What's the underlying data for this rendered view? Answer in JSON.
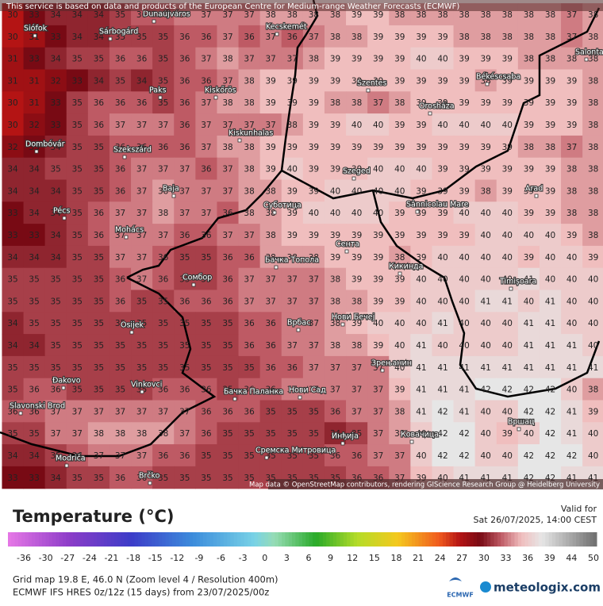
{
  "banner": "This service is based on data and products of the European Centre for Medium-range Weather Forecasts (ECMWF)",
  "map": {
    "grid": [
      [
        30,
        33,
        34,
        34,
        34,
        35,
        36,
        36,
        37,
        37,
        37,
        37,
        38,
        38,
        38,
        38,
        39,
        39,
        38,
        38,
        38,
        38,
        38,
        38,
        38,
        38,
        37,
        38
      ],
      [
        30,
        31,
        33,
        34,
        34,
        35,
        35,
        35,
        36,
        36,
        37,
        36,
        37,
        36,
        37,
        38,
        38,
        39,
        39,
        39,
        39,
        38,
        38,
        38,
        38,
        38,
        37,
        38
      ],
      [
        31,
        33,
        34,
        35,
        35,
        36,
        36,
        35,
        36,
        37,
        38,
        37,
        37,
        37,
        38,
        39,
        39,
        39,
        39,
        40,
        40,
        39,
        39,
        39,
        38,
        38,
        38,
        38
      ],
      [
        31,
        31,
        32,
        33,
        34,
        35,
        34,
        35,
        36,
        36,
        37,
        38,
        39,
        39,
        39,
        39,
        39,
        39,
        39,
        39,
        39,
        39,
        38,
        39,
        39,
        39,
        39,
        38
      ],
      [
        30,
        31,
        33,
        35,
        36,
        36,
        36,
        35,
        36,
        37,
        38,
        38,
        39,
        39,
        39,
        38,
        38,
        37,
        38,
        39,
        39,
        39,
        39,
        39,
        39,
        39,
        39,
        38
      ],
      [
        30,
        32,
        33,
        35,
        36,
        37,
        37,
        37,
        36,
        37,
        37,
        37,
        37,
        38,
        39,
        39,
        40,
        40,
        39,
        39,
        40,
        40,
        40,
        40,
        39,
        39,
        39,
        38
      ],
      [
        32,
        33,
        34,
        35,
        35,
        36,
        36,
        36,
        36,
        37,
        38,
        38,
        39,
        39,
        39,
        39,
        39,
        39,
        39,
        39,
        39,
        39,
        39,
        39,
        38,
        38,
        37,
        38
      ],
      [
        34,
        34,
        35,
        35,
        35,
        36,
        37,
        37,
        37,
        36,
        37,
        38,
        39,
        40,
        39,
        39,
        39,
        40,
        40,
        40,
        39,
        39,
        39,
        39,
        39,
        39,
        38,
        38
      ],
      [
        34,
        34,
        34,
        35,
        35,
        36,
        37,
        38,
        37,
        37,
        37,
        38,
        38,
        39,
        39,
        40,
        40,
        40,
        40,
        39,
        39,
        39,
        38,
        39,
        39,
        39,
        38,
        38
      ],
      [
        33,
        34,
        34,
        35,
        36,
        37,
        37,
        38,
        37,
        37,
        36,
        38,
        38,
        39,
        40,
        40,
        40,
        40,
        39,
        39,
        39,
        40,
        40,
        40,
        39,
        39,
        38,
        38
      ],
      [
        33,
        33,
        34,
        35,
        36,
        37,
        37,
        37,
        36,
        36,
        37,
        37,
        38,
        39,
        39,
        39,
        39,
        39,
        39,
        39,
        39,
        39,
        40,
        40,
        40,
        40,
        39,
        38
      ],
      [
        34,
        34,
        34,
        35,
        35,
        37,
        37,
        36,
        35,
        35,
        36,
        36,
        38,
        38,
        38,
        39,
        39,
        39,
        38,
        39,
        40,
        40,
        40,
        40,
        39,
        40,
        40,
        39
      ],
      [
        35,
        35,
        35,
        35,
        35,
        36,
        37,
        36,
        35,
        35,
        36,
        37,
        37,
        37,
        37,
        38,
        39,
        39,
        39,
        40,
        40,
        40,
        40,
        40,
        41,
        40,
        40,
        40
      ],
      [
        35,
        35,
        35,
        35,
        35,
        36,
        35,
        35,
        36,
        36,
        36,
        37,
        37,
        37,
        37,
        38,
        38,
        39,
        39,
        40,
        40,
        40,
        41,
        41,
        40,
        41,
        40,
        40
      ],
      [
        34,
        35,
        35,
        35,
        35,
        35,
        35,
        35,
        35,
        35,
        35,
        36,
        36,
        37,
        37,
        38,
        39,
        40,
        40,
        40,
        41,
        40,
        40,
        40,
        41,
        41,
        40,
        40
      ],
      [
        34,
        34,
        35,
        35,
        35,
        35,
        35,
        35,
        35,
        35,
        35,
        36,
        36,
        37,
        37,
        38,
        38,
        39,
        40,
        41,
        40,
        40,
        40,
        40,
        41,
        41,
        41,
        40
      ],
      [
        35,
        35,
        35,
        35,
        35,
        35,
        35,
        35,
        35,
        35,
        35,
        35,
        36,
        36,
        37,
        37,
        37,
        37,
        40,
        41,
        41,
        41,
        41,
        41,
        41,
        41,
        41,
        41
      ],
      [
        35,
        36,
        36,
        35,
        35,
        35,
        35,
        36,
        36,
        36,
        35,
        36,
        36,
        37,
        37,
        37,
        37,
        37,
        39,
        41,
        41,
        41,
        42,
        42,
        42,
        42,
        40,
        38
      ],
      [
        36,
        36,
        37,
        37,
        37,
        37,
        37,
        37,
        37,
        36,
        36,
        36,
        35,
        35,
        35,
        36,
        37,
        37,
        38,
        41,
        42,
        41,
        40,
        40,
        42,
        42,
        41,
        39
      ],
      [
        35,
        35,
        37,
        37,
        38,
        38,
        38,
        38,
        37,
        36,
        35,
        35,
        35,
        35,
        35,
        34,
        35,
        37,
        38,
        40,
        42,
        42,
        40,
        39,
        40,
        42,
        41,
        40
      ],
      [
        34,
        34,
        35,
        36,
        37,
        37,
        37,
        36,
        36,
        35,
        35,
        35,
        35,
        35,
        35,
        36,
        36,
        37,
        37,
        40,
        42,
        42,
        40,
        40,
        42,
        42,
        42,
        40
      ],
      [
        33,
        33,
        34,
        35,
        35,
        36,
        36,
        35,
        35,
        35,
        35,
        35,
        35,
        35,
        35,
        35,
        36,
        36,
        37,
        39,
        40,
        41,
        41,
        41,
        42,
        42,
        41,
        41
      ]
    ],
    "cities": [
      "Siófok",
      "Sárbogárd",
      "Dunaújváros",
      "Kecskemét",
      "Paks",
      "Kiskőrös",
      "Szentes",
      "Orosháza",
      "Békéscsaba",
      "Salonta",
      "Kiskunhalas",
      "Dombóvár",
      "Szekszárd",
      "Szeged",
      "Baja",
      "Arad",
      "Pécs",
      "Суботица",
      "Sânnicolau Mare",
      "Mohács",
      "Сента",
      "Бачка Топола",
      "Кикинда",
      "Сомбор",
      "Timișoara",
      "Osijek",
      "Врбас",
      "Нови Бечеј",
      "Зрењанин",
      "Vinkovci",
      "Đakovo",
      "Бачка Паланка",
      "Нови Сад",
      "Slavonski Brod",
      "Вршац",
      "Ковачица",
      "Инђија",
      "Сремска Митровица",
      "Modriča",
      "Brčko"
    ],
    "attribution": "Map data © OpenStreetMap contributors, rendering GIScience Research Group @ Heidelberg University"
  },
  "legend": {
    "title": "Temperature (°C)",
    "ticks": [
      -36,
      -30,
      -27,
      -24,
      -21,
      -18,
      -15,
      -12,
      -9,
      -6,
      -3,
      0,
      3,
      6,
      9,
      12,
      15,
      18,
      21,
      24,
      27,
      30,
      33,
      36,
      39,
      44,
      50
    ]
  },
  "valid": {
    "label": "Valid for",
    "time": "Sat 26/07/2025, 14:00 CEST"
  },
  "footer": {
    "grid_info": "Grid map 19.8 E, 46.0 N (Zoom level 4 / Resolution 400m)",
    "model": "ECMWF IFS HRES 0z/12z (15 days) from 23/07/2025/00z",
    "ecmwf": "ECMWF",
    "brand": "meteologix.com"
  }
}
